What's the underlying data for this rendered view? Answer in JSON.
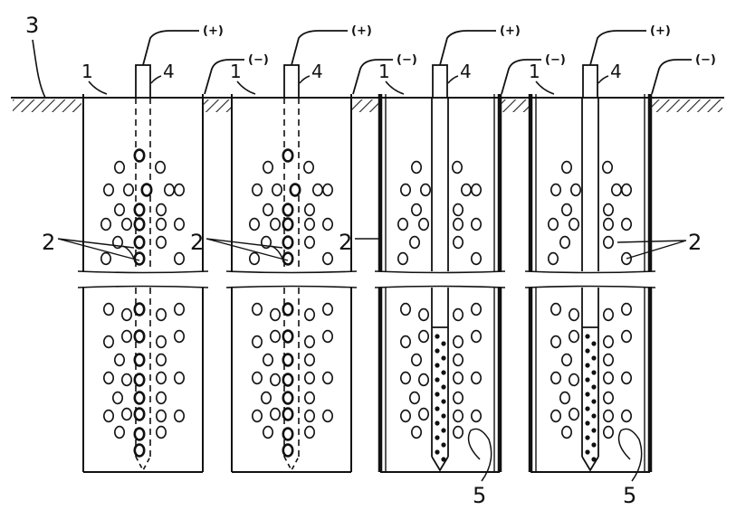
{
  "labels": {
    "ground": "3",
    "wall": "1",
    "electrode": "4",
    "particles": "2",
    "zone": "5",
    "anode": "(+)",
    "cathode": "(−)"
  },
  "cells": [
    {
      "id": "a",
      "electrode": "dashed",
      "treated_zone": false,
      "particles_label": "left"
    },
    {
      "id": "b",
      "electrode": "dashed",
      "treated_zone": false,
      "particles_label": "left"
    },
    {
      "id": "c",
      "electrode": "open",
      "treated_zone": true,
      "particles_label": "left"
    },
    {
      "id": "d",
      "electrode": "open",
      "treated_zone": true,
      "particles_label": "right"
    }
  ]
}
